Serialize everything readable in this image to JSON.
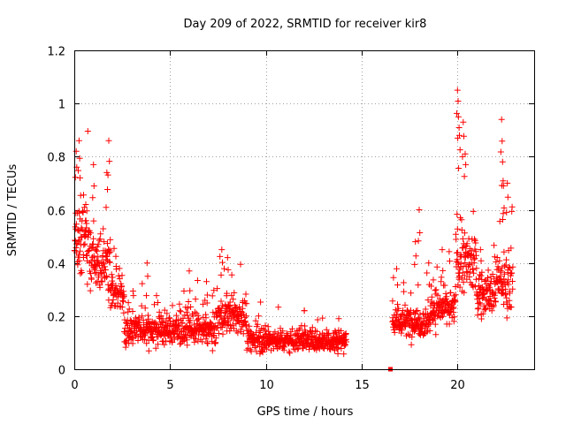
{
  "chart_data": {
    "type": "scatter",
    "title": "Day 209 of 2022, SRMTID for receiver kir8",
    "xlabel": "GPS time / hours",
    "ylabel": "SRMTID / TECUs",
    "xlim": [
      0,
      24
    ],
    "ylim": [
      0,
      1.2
    ],
    "x_ticks": [
      0,
      5,
      10,
      15,
      20
    ],
    "x_tick_labels": [
      "0",
      "5",
      "10",
      "15",
      "20"
    ],
    "y_ticks": [
      0,
      0.2,
      0.4,
      0.6,
      0.8,
      1.0,
      1.2
    ],
    "y_tick_labels": [
      "0",
      "0.2",
      "0.4",
      "0.6",
      "0.8",
      "1",
      "1.2"
    ],
    "grid": true,
    "marker": "+",
    "series_color": "#ff0000",
    "gap_marker": {
      "x": 16.5,
      "y": 0.0,
      "shape": "square"
    },
    "segments": [
      {
        "x_start": 0.0,
        "x_end": 0.8,
        "level": 0.48,
        "spread": 0.22,
        "step": 0.012,
        "peaks": [
          [
            0.1,
            0.82
          ],
          [
            0.25,
            0.86
          ],
          [
            0.3,
            0.72
          ],
          [
            0.6,
            0.62
          ]
        ]
      },
      {
        "x_start": 0.8,
        "x_end": 1.9,
        "level": 0.4,
        "spread": 0.18,
        "step": 0.012,
        "peaks": [
          [
            1.0,
            0.77
          ],
          [
            1.7,
            0.74
          ],
          [
            1.8,
            0.86
          ]
        ]
      },
      {
        "x_start": 1.9,
        "x_end": 2.6,
        "level": 0.28,
        "spread": 0.12,
        "step": 0.012,
        "peaks": []
      },
      {
        "x_start": 2.6,
        "x_end": 7.4,
        "level": 0.15,
        "spread": 0.1,
        "step": 0.012,
        "peaks": [
          [
            3.8,
            0.4
          ],
          [
            6.0,
            0.37
          ],
          [
            6.9,
            0.33
          ]
        ]
      },
      {
        "x_start": 7.4,
        "x_end": 9.0,
        "level": 0.2,
        "spread": 0.12,
        "step": 0.012,
        "peaks": [
          [
            7.7,
            0.45
          ],
          [
            8.0,
            0.42
          ]
        ]
      },
      {
        "x_start": 9.0,
        "x_end": 14.2,
        "level": 0.11,
        "spread": 0.07,
        "step": 0.012,
        "peaks": [
          [
            12.0,
            0.22
          ],
          [
            13.8,
            0.19
          ]
        ]
      },
      {
        "x_start": 16.6,
        "x_end": 18.6,
        "level": 0.18,
        "spread": 0.1,
        "step": 0.012,
        "peaks": [
          [
            18.0,
            0.6
          ],
          [
            17.8,
            0.48
          ],
          [
            18.5,
            0.4
          ]
        ]
      },
      {
        "x_start": 18.6,
        "x_end": 19.9,
        "level": 0.23,
        "spread": 0.12,
        "step": 0.012,
        "peaks": [
          [
            19.2,
            0.45
          ]
        ]
      },
      {
        "x_start": 19.9,
        "x_end": 21.0,
        "level": 0.4,
        "spread": 0.2,
        "step": 0.012,
        "peaks": [
          [
            20.0,
            1.05
          ],
          [
            20.05,
            0.95
          ],
          [
            20.1,
            0.88
          ],
          [
            20.3,
            0.93
          ],
          [
            20.4,
            0.81
          ]
        ]
      },
      {
        "x_start": 21.0,
        "x_end": 22.0,
        "level": 0.28,
        "spread": 0.14,
        "step": 0.012,
        "peaks": [
          [
            21.2,
            0.45
          ]
        ]
      },
      {
        "x_start": 22.0,
        "x_end": 22.9,
        "level": 0.33,
        "spread": 0.18,
        "step": 0.012,
        "peaks": [
          [
            22.3,
            0.94
          ],
          [
            22.35,
            0.78
          ],
          [
            22.6,
            0.7
          ],
          [
            22.4,
            0.69
          ]
        ]
      }
    ]
  }
}
